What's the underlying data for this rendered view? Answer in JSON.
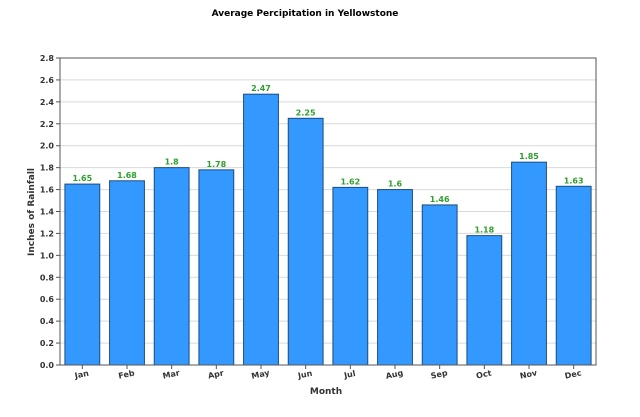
{
  "chart_data": {
    "type": "bar",
    "title": "Average Percipitation in Yellowstone",
    "xlabel": "Month",
    "ylabel": "Inches of Rainfall",
    "categories": [
      "Jan",
      "Feb",
      "Mar",
      "Apr",
      "May",
      "Jun",
      "Jul",
      "Aug",
      "Sep",
      "Oct",
      "Nov",
      "Dec"
    ],
    "values": [
      1.65,
      1.68,
      1.8,
      1.78,
      2.47,
      2.25,
      1.62,
      1.6,
      1.46,
      1.18,
      1.85,
      1.63
    ],
    "value_labels": [
      "1.65",
      "1.68",
      "1.8",
      "1.78",
      "2.47",
      "2.25",
      "1.62",
      "1.6",
      "1.46",
      "1.18",
      "1.85",
      "1.63"
    ],
    "ylim": [
      0,
      2.8
    ],
    "yticks": [
      "0.0",
      "0.2",
      "0.4",
      "0.6",
      "0.8",
      "1.0",
      "1.2",
      "1.4",
      "1.6",
      "1.8",
      "2.0",
      "2.2",
      "2.4",
      "2.6",
      "2.8"
    ],
    "grid": true,
    "bar_color": "#3399ff",
    "bar_edge_color": "#1a4d80",
    "label_color": "#2ea02e"
  }
}
